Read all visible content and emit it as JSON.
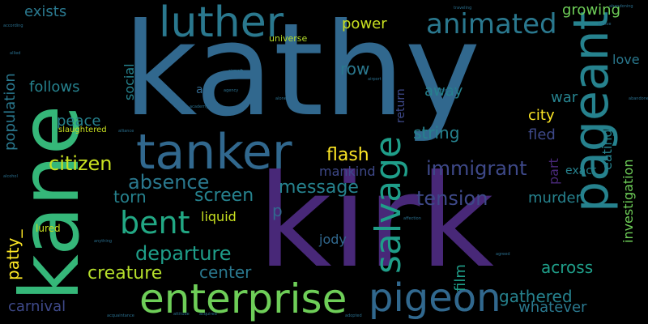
{
  "words": {
    "kathy": "kathy",
    "kirk": "kirk",
    "kane": "kane",
    "tanker": "tanker",
    "luther": "luther",
    "enterprise": "enterprise",
    "pigeon": "pigeon",
    "pageant": "pageant",
    "salvage": "salvage",
    "animated": "animated",
    "bent": "bent",
    "immigrant": "immigrant",
    "flash": "flash",
    "departure": "departure",
    "creature": "creature",
    "absence": "absence",
    "citizen": "citizen",
    "screen": "screen",
    "string": "string",
    "tension": "tension",
    "message": "message",
    "center": "center",
    "gathered": "gathered",
    "whatever": "whatever",
    "across": "across",
    "carnival": "carnival",
    "torn": "torn",
    "peace": "peace",
    "follows": "follows",
    "exists": "exists",
    "power": "power",
    "row": "row",
    "growing": "growing",
    "love": "love",
    "war": "war",
    "city": "city",
    "fled": "fled",
    "exact": "exact",
    "murder": "murder",
    "mankind": "mankind",
    "liquid": "liquid",
    "jody": "jody",
    "away": "away",
    "ad": "ad",
    "p": "p",
    "lured": "lured",
    "universe": "universe",
    "slaughtered": "slaughtered",
    "population": "population",
    "social": "social",
    "return": "return",
    "part": "part",
    "investigation": "investigation",
    "eating": "eating",
    "patty": "patty_",
    "film": "film"
  },
  "tiny_words": [
    "according",
    "abandoning",
    "traveling",
    "afterwards",
    "alone",
    "allied",
    "aircraft",
    "agency",
    "alliance",
    "attitude",
    "acquaintance",
    "affection",
    "afraid",
    "agreed",
    "alcohol",
    "abandoned",
    "adopted",
    "academy",
    "airport",
    "acquired",
    "anything",
    "advice"
  ],
  "colors": {
    "background": "#000000",
    "palette": [
      "#440154",
      "#482878",
      "#3e4989",
      "#31688e",
      "#26828e",
      "#1f9e89",
      "#35b779",
      "#6ece58",
      "#b5de2b",
      "#fde725"
    ]
  }
}
